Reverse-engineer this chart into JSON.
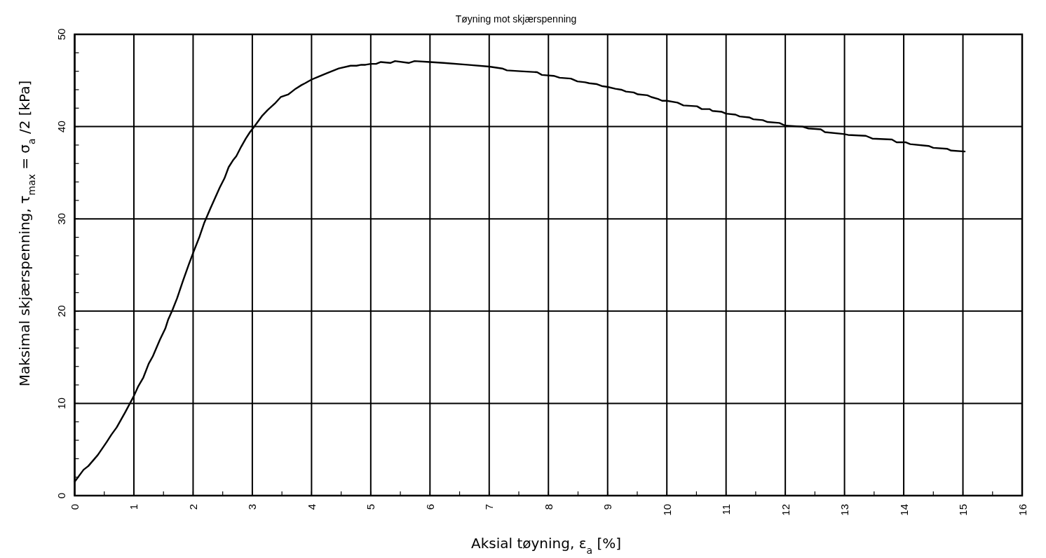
{
  "chart_data": {
    "type": "line",
    "title": "Tøyning mot skjærspenning",
    "xlabel": "Aksial tøyning, ε$_{a}$ [%]",
    "ylabel": "Maksimal skjærspenning, τ$_{max}$ = σ$_{a}$ /2  [kPa]",
    "xlim": [
      0,
      16
    ],
    "ylim": [
      0,
      50
    ],
    "xticks": [
      0,
      {
        "value": 0.5,
        "label": null
      },
      1,
      {
        "value": 1.5,
        "label": null
      },
      2,
      {
        "value": 2.5,
        "label": null
      },
      3,
      {
        "value": 3.5,
        "label": null
      },
      4,
      {
        "value": 4.5,
        "label": null
      },
      5,
      {
        "value": 5.5,
        "label": null
      },
      6,
      {
        "value": 6.5,
        "label": null
      },
      7,
      {
        "value": 7.5,
        "label": null
      },
      8,
      {
        "value": 8.5,
        "label": null
      },
      9,
      {
        "value": 9.5,
        "label": null
      },
      10,
      {
        "value": 10.5,
        "label": null
      },
      11,
      {
        "value": 11.5,
        "label": null
      },
      12,
      {
        "value": 12.5,
        "label": null
      },
      13,
      {
        "value": 13.5,
        "label": null
      },
      14,
      {
        "value": 14.5,
        "label": null
      },
      15,
      {
        "value": 15.5,
        "label": null
      },
      16
    ],
    "yticks": [
      0,
      {
        "value": 2,
        "label": null
      },
      {
        "value": 4,
        "label": null
      },
      {
        "value": 6,
        "label": null
      },
      {
        "value": 8,
        "label": null
      },
      10,
      {
        "value": 12,
        "label": null
      },
      {
        "value": 14,
        "label": null
      },
      {
        "value": 16,
        "label": null
      },
      {
        "value": 18,
        "label": null
      },
      20,
      {
        "value": 22,
        "label": null
      },
      {
        "value": 24,
        "label": null
      },
      {
        "value": 26,
        "label": null
      },
      {
        "value": 28,
        "label": null
      },
      30,
      {
        "value": 32,
        "label": null
      },
      {
        "value": 34,
        "label": null
      },
      {
        "value": 36,
        "label": null
      },
      {
        "value": 38,
        "label": null
      },
      40,
      {
        "value": 42,
        "label": null
      },
      {
        "value": 44,
        "label": null
      },
      {
        "value": 46,
        "label": null
      },
      {
        "value": 48,
        "label": null
      },
      50
    ],
    "grid": true,
    "line_style": "solid",
    "series": [
      {
        "color": "#000000",
        "x": [
          0,
          0.15,
          0.23,
          0.39,
          0.54,
          0.62,
          0.71,
          0.85,
          1.0,
          1.07,
          1.16,
          1.25,
          1.32,
          1.44,
          1.53,
          1.58,
          1.65,
          1.73,
          1.83,
          1.93,
          2.0,
          2.11,
          2.19,
          2.29,
          2.45,
          2.53,
          2.6,
          2.68,
          2.73,
          2.81,
          2.89,
          2.96,
          3.02,
          3.09,
          3.17,
          3.26,
          3.38,
          3.48,
          3.61,
          3.67,
          3.73,
          3.83,
          3.89,
          4.0,
          4.11,
          4.26,
          4.46,
          4.66,
          4.76,
          4.84,
          4.91,
          5.0,
          5.09,
          5.17,
          5.33,
          5.41,
          5.64,
          5.74,
          6.0,
          6.23,
          6.63,
          7.0,
          7.22,
          7.3,
          7.53,
          7.81,
          7.89,
          8.09,
          8.19,
          8.38,
          8.49,
          8.62,
          8.69,
          8.82,
          8.9,
          9.0,
          9.13,
          9.23,
          9.31,
          9.44,
          9.51,
          9.67,
          9.74,
          9.85,
          9.92,
          10.0,
          10.18,
          10.28,
          10.51,
          10.59,
          10.72,
          10.77,
          10.93,
          11.0,
          11.16,
          11.23,
          11.39,
          11.46,
          11.62,
          11.7,
          11.9,
          12.0,
          12.29,
          12.39,
          12.6,
          12.67,
          12.98,
          13.06,
          13.36,
          13.47,
          13.8,
          13.88,
          14.03,
          14.11,
          14.42,
          14.5,
          14.73,
          14.8,
          15.03
        ],
        "values": [
          1.5,
          2.8,
          3.2,
          4.4,
          5.8,
          6.6,
          7.4,
          9.0,
          10.8,
          11.8,
          12.8,
          14.3,
          15.1,
          16.9,
          18.1,
          19.1,
          20.1,
          21.4,
          23.3,
          25.1,
          26.3,
          28.1,
          29.6,
          31.1,
          33.4,
          34.4,
          35.6,
          36.4,
          36.8,
          37.8,
          38.7,
          39.4,
          39.9,
          40.5,
          41.2,
          41.8,
          42.5,
          43.2,
          43.5,
          43.8,
          44.1,
          44.5,
          44.7,
          45.1,
          45.4,
          45.8,
          46.3,
          46.6,
          46.6,
          46.7,
          46.7,
          46.8,
          46.8,
          47.0,
          46.9,
          47.1,
          46.9,
          47.1,
          47.0,
          46.9,
          46.7,
          46.5,
          46.3,
          46.1,
          46.0,
          45.9,
          45.6,
          45.5,
          45.3,
          45.2,
          44.9,
          44.8,
          44.7,
          44.6,
          44.4,
          44.3,
          44.1,
          44.0,
          43.8,
          43.7,
          43.5,
          43.4,
          43.2,
          43.0,
          42.8,
          42.8,
          42.6,
          42.3,
          42.2,
          41.9,
          41.9,
          41.7,
          41.6,
          41.4,
          41.3,
          41.1,
          41.0,
          40.8,
          40.7,
          40.5,
          40.4,
          40.1,
          40.0,
          39.8,
          39.7,
          39.4,
          39.2,
          39.1,
          39.0,
          38.7,
          38.6,
          38.3,
          38.3,
          38.1,
          37.9,
          37.7,
          37.6,
          37.4,
          37.3
        ]
      }
    ]
  }
}
